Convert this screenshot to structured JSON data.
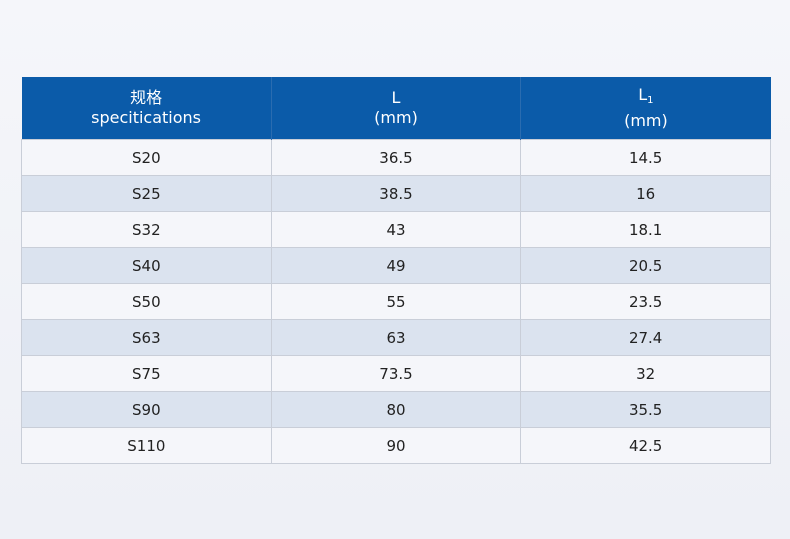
{
  "table": {
    "headers": [
      {
        "line1": "规格",
        "line2": "specitications",
        "sub": ""
      },
      {
        "line1": "L",
        "line2": "(mm)",
        "sub": ""
      },
      {
        "line1": "L",
        "line2": "(mm)",
        "sub": "1"
      }
    ],
    "rows": [
      [
        "S20",
        "36.5",
        "14.5"
      ],
      [
        "S25",
        "38.5",
        "16"
      ],
      [
        "S32",
        "43",
        "18.1"
      ],
      [
        "S40",
        "49",
        "20.5"
      ],
      [
        "S50",
        "55",
        "23.5"
      ],
      [
        "S63",
        "63",
        "27.4"
      ],
      [
        "S75",
        "73.5",
        "32"
      ],
      [
        "S90",
        "80",
        "35.5"
      ],
      [
        "S110",
        "90",
        "42.5"
      ]
    ]
  },
  "colors": {
    "header": "#0b5ba9",
    "stripe": "#dbe3ef"
  }
}
